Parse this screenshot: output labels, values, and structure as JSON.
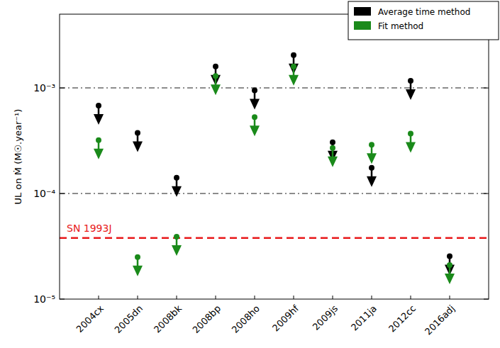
{
  "chart_data": {
    "type": "scatter",
    "y_label": "UL on Ṁ (M☉.year⁻¹)",
    "categories": [
      "2004cx",
      "2005dn",
      "2008bk",
      "2008bp",
      "2008ho",
      "2009hf",
      "2009js",
      "2011ja",
      "2012cc",
      "2016adj"
    ],
    "series": [
      {
        "name": "Average time method",
        "color": "#000000",
        "marker": "arrow-down",
        "values": [
          0.00068,
          0.000375,
          0.000141,
          0.0016,
          0.00095,
          0.00205,
          0.000306,
          0.000175,
          0.00117,
          2.55e-05
        ]
      },
      {
        "name": "Fit method",
        "color": "#1a8a1a",
        "marker": "arrow-down",
        "values": [
          0.00032,
          2.5e-05,
          3.9e-05,
          0.0013,
          0.00053,
          0.0016,
          0.00027,
          0.00029,
          0.00037,
          2.1e-05
        ]
      }
    ],
    "log": "y",
    "ylim": [
      1e-05,
      0.005
    ],
    "yticks": [
      {
        "value": 1e-05,
        "label": "10⁻⁵"
      },
      {
        "value": 0.0001,
        "label": "10⁻⁴"
      },
      {
        "value": 0.001,
        "label": "10⁻³"
      }
    ],
    "reference_lines": [
      0.001,
      0.0001
    ],
    "annotations": [
      {
        "text": "SN 1993J",
        "value": 3.8e-05,
        "color": "#e8191b"
      }
    ],
    "legend": "upper right"
  }
}
